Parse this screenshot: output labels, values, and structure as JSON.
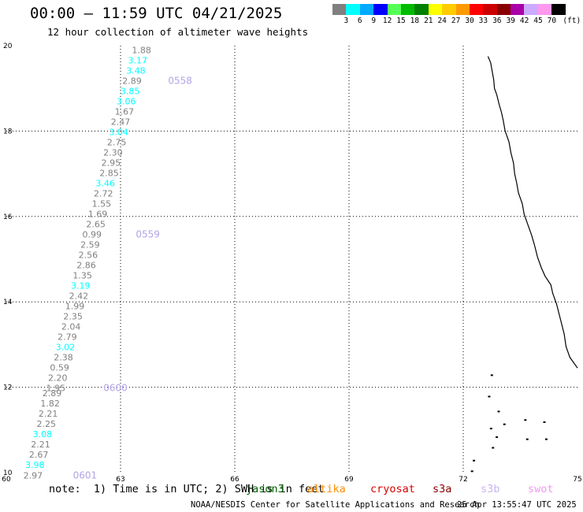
{
  "header": {
    "title": "00:00 – 11:59 UTC 04/21/2025",
    "subtitle": "12 hour collection of altimeter wave heights"
  },
  "color_scale": {
    "unit_label": "(ft)",
    "swatches": [
      {
        "color": "#808080",
        "label": "3"
      },
      {
        "color": "#00ffff",
        "label": "6"
      },
      {
        "color": "#00aaff",
        "label": "9"
      },
      {
        "color": "#0000ff",
        "label": "12"
      },
      {
        "color": "#55ff55",
        "label": "15"
      },
      {
        "color": "#00bb00",
        "label": "18"
      },
      {
        "color": "#008000",
        "label": "21"
      },
      {
        "color": "#ffff00",
        "label": "24"
      },
      {
        "color": "#ffcc00",
        "label": "27"
      },
      {
        "color": "#ff9900",
        "label": "30"
      },
      {
        "color": "#ff0000",
        "label": "33"
      },
      {
        "color": "#cc0000",
        "label": "36"
      },
      {
        "color": "#880000",
        "label": "39"
      },
      {
        "color": "#aa00aa",
        "label": "42"
      },
      {
        "color": "#ccaaff",
        "label": "45"
      },
      {
        "color": "#ff99ee",
        "label": "70"
      },
      {
        "color": "#000000",
        "label": ""
      }
    ]
  },
  "map": {
    "lon_min": 60,
    "lon_max": 75,
    "lat_min": 10,
    "lat_max": 20,
    "x_ticks": [
      "60",
      "63",
      "66",
      "69",
      "72",
      "75"
    ],
    "y_ticks": [
      "10",
      "12",
      "14",
      "16",
      "18",
      "20"
    ],
    "track_points": [
      {
        "lon": 63.55,
        "lat": 19.9,
        "value": "1.88",
        "color": "#808080"
      },
      {
        "lon": 63.45,
        "lat": 19.66,
        "value": "3.17",
        "color": "#00ffff"
      },
      {
        "lon": 63.4,
        "lat": 19.42,
        "value": "3.48",
        "color": "#00ffff"
      },
      {
        "lon": 63.3,
        "lat": 19.18,
        "value": "2.89",
        "color": "#808080"
      },
      {
        "lon": 63.25,
        "lat": 18.94,
        "value": "3.85",
        "color": "#00ffff"
      },
      {
        "lon": 63.15,
        "lat": 18.7,
        "value": "3.06",
        "color": "#00ffff"
      },
      {
        "lon": 63.1,
        "lat": 18.46,
        "value": "1.67",
        "color": "#808080"
      },
      {
        "lon": 63.0,
        "lat": 18.22,
        "value": "2.47",
        "color": "#808080"
      },
      {
        "lon": 62.95,
        "lat": 17.98,
        "value": "3.04",
        "color": "#00ffff"
      },
      {
        "lon": 62.9,
        "lat": 17.74,
        "value": "2.75",
        "color": "#808080"
      },
      {
        "lon": 62.8,
        "lat": 17.5,
        "value": "2.30",
        "color": "#808080"
      },
      {
        "lon": 62.75,
        "lat": 17.26,
        "value": "2.95",
        "color": "#808080"
      },
      {
        "lon": 62.7,
        "lat": 17.02,
        "value": "2.85",
        "color": "#808080"
      },
      {
        "lon": 62.6,
        "lat": 16.78,
        "value": "3.46",
        "color": "#00ffff"
      },
      {
        "lon": 62.55,
        "lat": 16.54,
        "value": "2.72",
        "color": "#808080"
      },
      {
        "lon": 62.5,
        "lat": 16.3,
        "value": "1.55",
        "color": "#808080"
      },
      {
        "lon": 62.4,
        "lat": 16.06,
        "value": "1.69",
        "color": "#808080"
      },
      {
        "lon": 62.35,
        "lat": 15.82,
        "value": "2.65",
        "color": "#808080"
      },
      {
        "lon": 62.25,
        "lat": 15.58,
        "value": "0.99",
        "color": "#808080"
      },
      {
        "lon": 62.2,
        "lat": 15.34,
        "value": "2.59",
        "color": "#808080"
      },
      {
        "lon": 62.15,
        "lat": 15.1,
        "value": "2.56",
        "color": "#808080"
      },
      {
        "lon": 62.1,
        "lat": 14.86,
        "value": "2.86",
        "color": "#808080"
      },
      {
        "lon": 62.0,
        "lat": 14.62,
        "value": "1.35",
        "color": "#808080"
      },
      {
        "lon": 61.95,
        "lat": 14.38,
        "value": "3.19",
        "color": "#00ffff"
      },
      {
        "lon": 61.9,
        "lat": 14.14,
        "value": "2.42",
        "color": "#808080"
      },
      {
        "lon": 61.8,
        "lat": 13.9,
        "value": "1.99",
        "color": "#808080"
      },
      {
        "lon": 61.75,
        "lat": 13.66,
        "value": "2.35",
        "color": "#808080"
      },
      {
        "lon": 61.7,
        "lat": 13.42,
        "value": "2.04",
        "color": "#808080"
      },
      {
        "lon": 61.6,
        "lat": 13.18,
        "value": "2.79",
        "color": "#808080"
      },
      {
        "lon": 61.55,
        "lat": 12.94,
        "value": "3.02",
        "color": "#00ffff"
      },
      {
        "lon": 61.5,
        "lat": 12.7,
        "value": "2.38",
        "color": "#808080"
      },
      {
        "lon": 61.4,
        "lat": 12.46,
        "value": "0.59",
        "color": "#808080"
      },
      {
        "lon": 61.35,
        "lat": 12.22,
        "value": "2.20",
        "color": "#808080"
      },
      {
        "lon": 61.3,
        "lat": 11.98,
        "value": "1.95",
        "color": "#808080"
      },
      {
        "lon": 61.2,
        "lat": 11.86,
        "value": "2.89",
        "color": "#808080"
      },
      {
        "lon": 61.15,
        "lat": 11.62,
        "value": "1.82",
        "color": "#808080"
      },
      {
        "lon": 61.1,
        "lat": 11.38,
        "value": "2.21",
        "color": "#808080"
      },
      {
        "lon": 61.05,
        "lat": 11.14,
        "value": "2.25",
        "color": "#808080"
      },
      {
        "lon": 60.95,
        "lat": 10.9,
        "value": "3.08",
        "color": "#00ffff"
      },
      {
        "lon": 60.9,
        "lat": 10.66,
        "value": "2.21",
        "color": "#808080"
      },
      {
        "lon": 60.85,
        "lat": 10.42,
        "value": "2.67",
        "color": "#808080"
      },
      {
        "lon": 60.75,
        "lat": 10.18,
        "value": "3.98",
        "color": "#00ffff"
      },
      {
        "lon": 60.7,
        "lat": 9.94,
        "value": "2.97",
        "color": "#808080"
      }
    ],
    "time_labels": [
      {
        "lon": 64.25,
        "lat": 19.18,
        "text": "0558"
      },
      {
        "lon": 63.4,
        "lat": 15.58,
        "text": "0559"
      },
      {
        "lon": 62.55,
        "lat": 11.98,
        "text": "0600"
      },
      {
        "lon": 61.75,
        "lat": 9.94,
        "text": "0601"
      }
    ],
    "time_label_color": "#b3a3e6",
    "coastline": [
      [
        72.65,
        19.75
      ],
      [
        72.72,
        19.6
      ],
      [
        72.75,
        19.45
      ],
      [
        72.8,
        19.2
      ],
      [
        72.82,
        19.0
      ],
      [
        72.88,
        18.85
      ],
      [
        72.95,
        18.6
      ],
      [
        73.0,
        18.45
      ],
      [
        73.05,
        18.25
      ],
      [
        73.1,
        18.0
      ],
      [
        73.2,
        17.75
      ],
      [
        73.25,
        17.5
      ],
      [
        73.32,
        17.25
      ],
      [
        73.35,
        17.0
      ],
      [
        73.4,
        16.8
      ],
      [
        73.45,
        16.55
      ],
      [
        73.55,
        16.3
      ],
      [
        73.6,
        16.05
      ],
      [
        73.7,
        15.8
      ],
      [
        73.8,
        15.55
      ],
      [
        73.88,
        15.3
      ],
      [
        73.95,
        15.05
      ],
      [
        74.05,
        14.8
      ],
      [
        74.15,
        14.6
      ],
      [
        74.3,
        14.4
      ],
      [
        74.35,
        14.2
      ],
      [
        74.45,
        13.95
      ],
      [
        74.55,
        13.6
      ],
      [
        74.65,
        13.25
      ],
      [
        74.7,
        12.95
      ],
      [
        74.8,
        12.7
      ],
      [
        75.0,
        12.45
      ]
    ],
    "islands": [
      [
        72.72,
        12.3
      ],
      [
        72.65,
        11.8
      ],
      [
        72.9,
        11.45
      ],
      [
        73.05,
        11.15
      ],
      [
        72.7,
        11.05
      ],
      [
        72.85,
        10.85
      ],
      [
        73.6,
        11.25
      ],
      [
        74.1,
        11.2
      ],
      [
        72.75,
        10.6
      ],
      [
        73.65,
        10.8
      ],
      [
        74.15,
        10.8
      ],
      [
        72.25,
        10.3
      ],
      [
        72.2,
        10.05
      ]
    ]
  },
  "note": {
    "text": "note:  1) Time is in UTC; 2) SWH is in feet",
    "satellites": [
      {
        "name": "jason3",
        "color": "#006400"
      },
      {
        "name": "altika",
        "color": "#ff8c00"
      },
      {
        "name": "cryosat",
        "color": "#dd0000"
      },
      {
        "name": "s3a",
        "color": "#8b0000"
      },
      {
        "name": "s3b",
        "color": "#c8b4f0"
      },
      {
        "name": "swot",
        "color": "#ee99ee"
      }
    ]
  },
  "footer": {
    "credit": "NOAA/NESDIS Center for Satellite Applications and Research",
    "timestamp": "25 Apr 13:55:47 UTC 2025"
  }
}
